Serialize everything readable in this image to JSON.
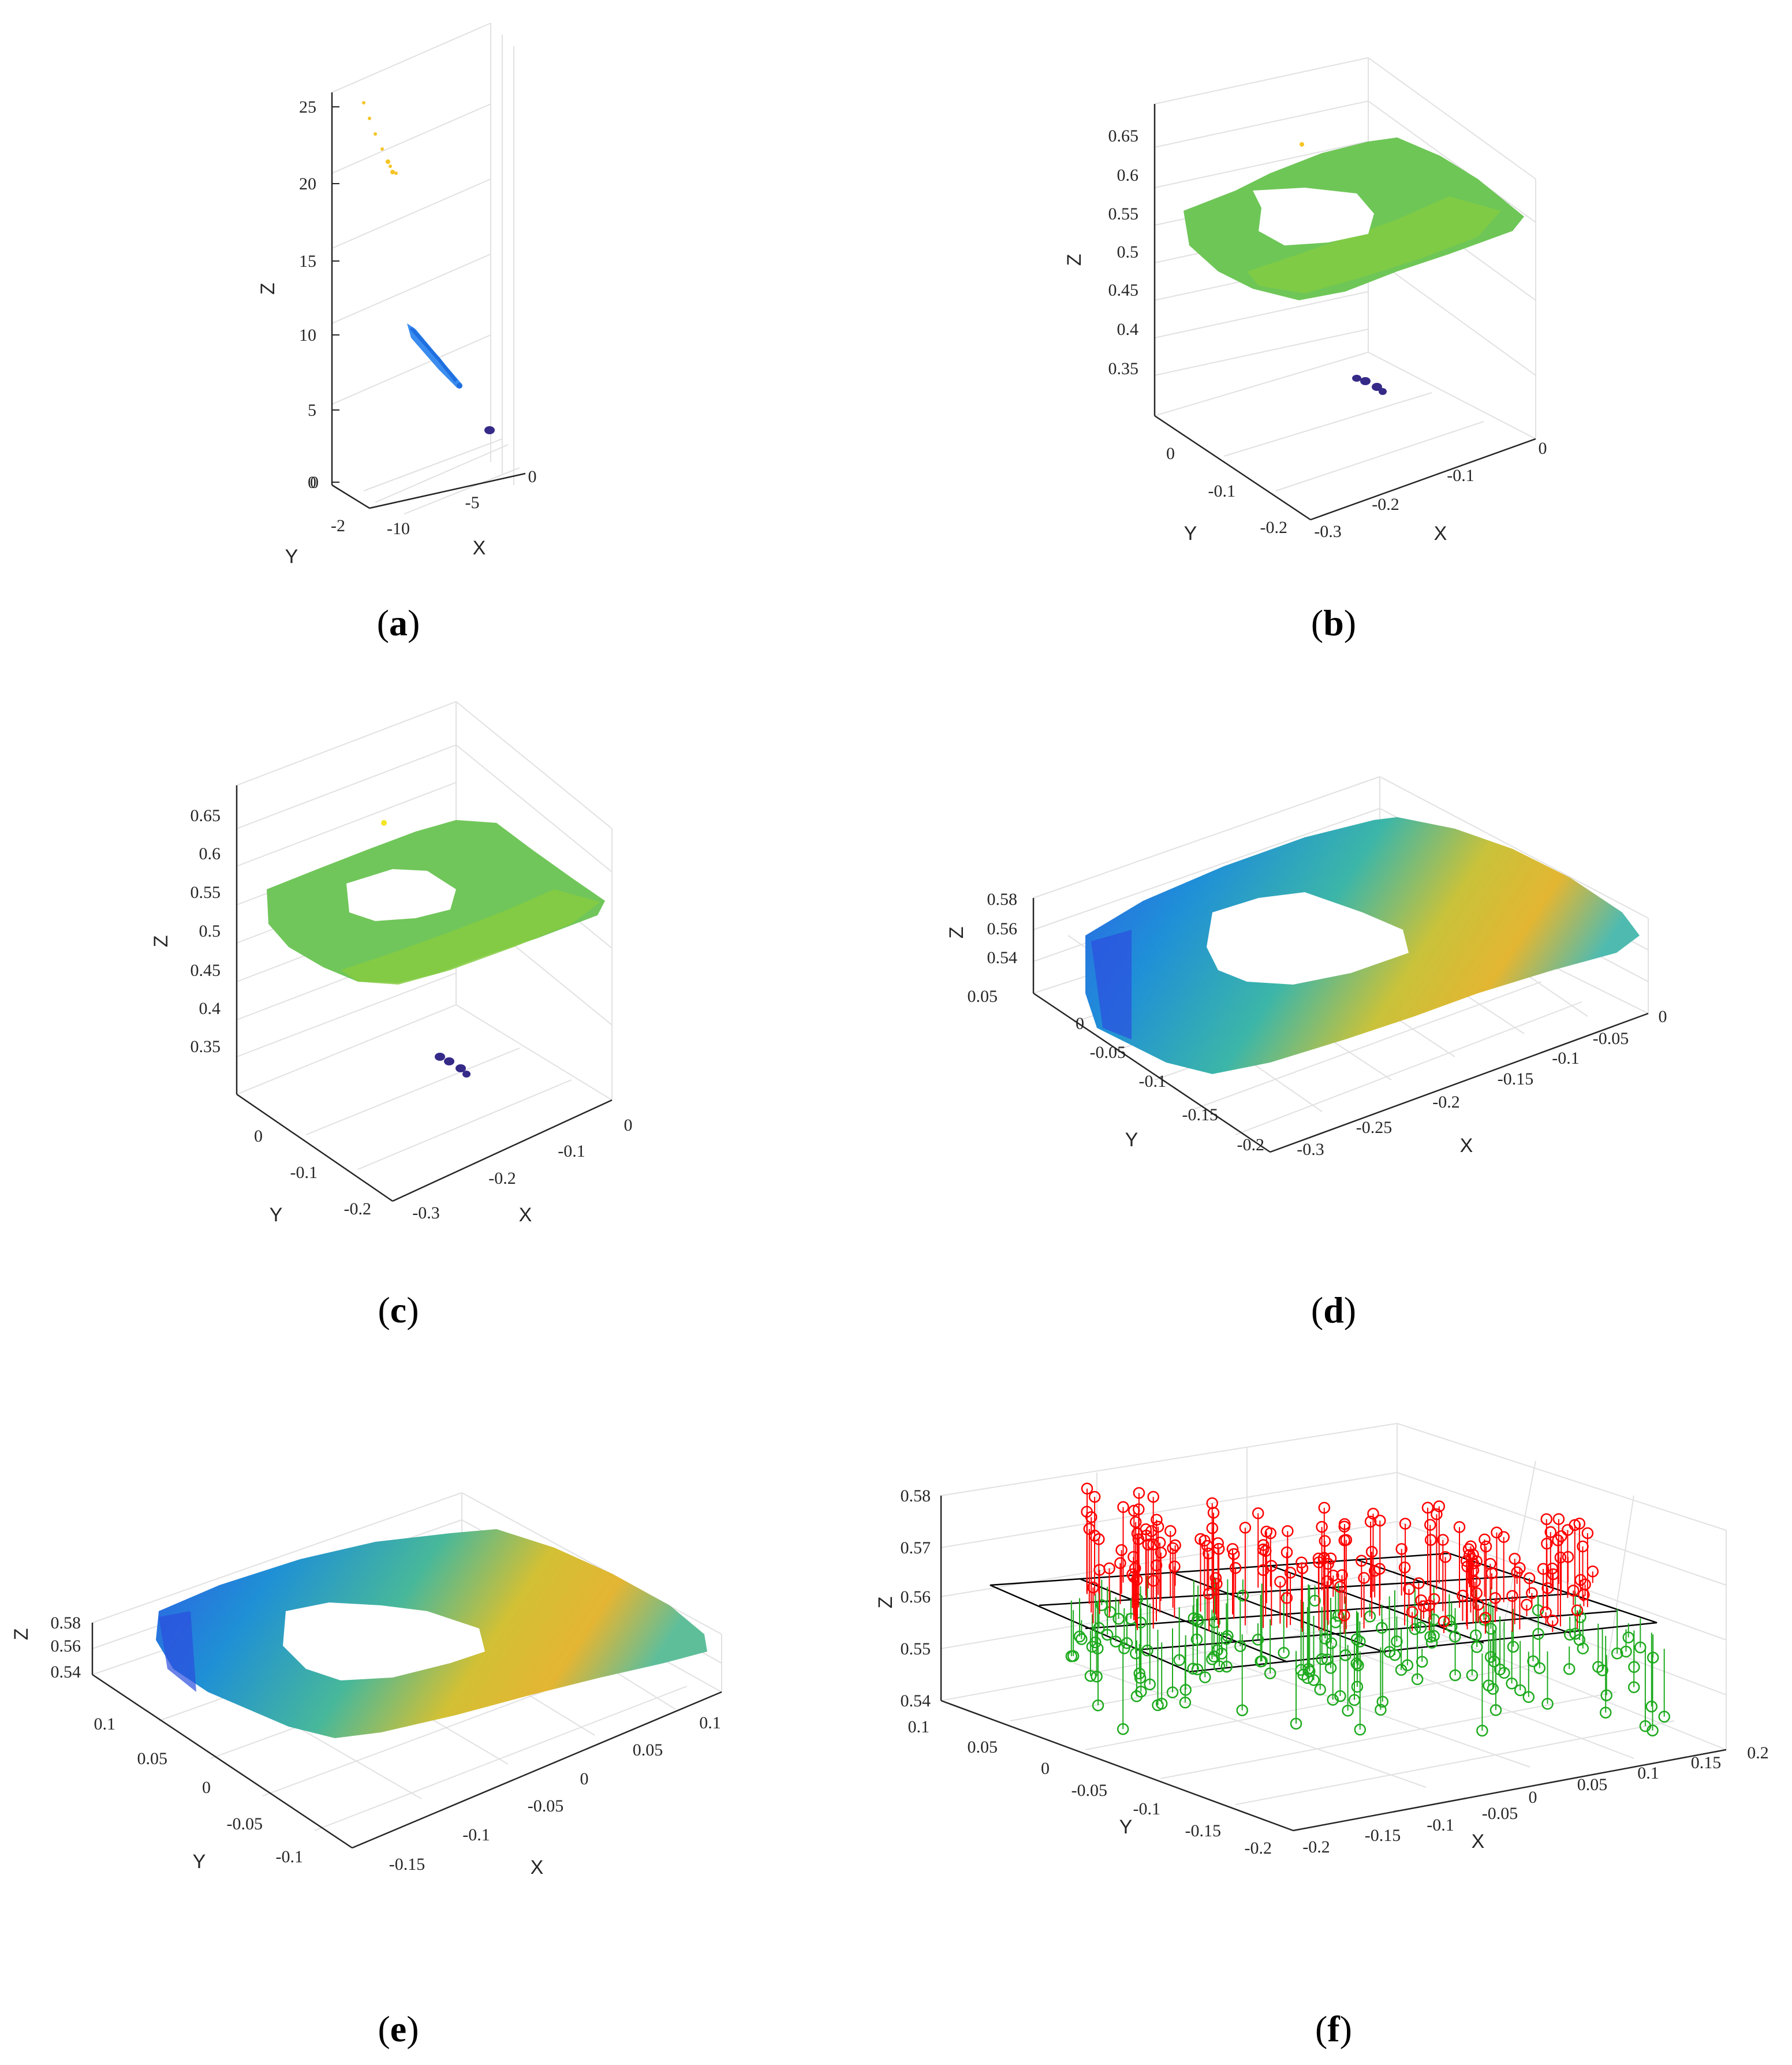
{
  "figure": {
    "panels": [
      {
        "caption": "a",
        "caption_parts": [
          "(",
          "a",
          ")"
        ]
      },
      {
        "caption": "b",
        "caption_parts": [
          "(",
          "b",
          ")"
        ]
      },
      {
        "caption": "c",
        "caption_parts": [
          "(",
          "c",
          ")"
        ]
      },
      {
        "caption": "d",
        "caption_parts": [
          "(",
          "d",
          ")"
        ]
      },
      {
        "caption": "e",
        "caption_parts": [
          "(",
          "e",
          ")"
        ]
      },
      {
        "caption": "f",
        "caption_parts": [
          "(",
          "f",
          ")"
        ]
      }
    ]
  },
  "colors": {
    "parula_dark_blue": "#352a87",
    "parula_blue": "#1f6fe0",
    "parula_cyan": "#22b3c9",
    "parula_green": "#7ac943",
    "parula_yellow": "#f5c528",
    "stem_red": "#ff0000",
    "stem_green": "#1eaa1e",
    "plane_black": "#000000"
  },
  "chart_data": [
    {
      "panel": "a",
      "type": "scatter",
      "subtype": "3d point cloud",
      "xlabel": "X",
      "ylabel": "Y",
      "zlabel": "Z",
      "x_ticks": [
        "-10",
        "-5",
        "0"
      ],
      "y_ticks": [
        "-2",
        "0"
      ],
      "z_ticks": [
        "0",
        "5",
        "10",
        "15",
        "20",
        "25"
      ],
      "xlim": [
        -12,
        0
      ],
      "ylim": [
        -2,
        0
      ],
      "zlim": [
        0,
        27
      ],
      "colormap": "parula",
      "clusters": [
        {
          "desc": "sparse far points",
          "x": [
            -11.5,
            -9.5
          ],
          "z": [
            21,
            26
          ],
          "color": "yellow"
        },
        {
          "desc": "elongated mid cluster",
          "x": [
            -8,
            -5
          ],
          "z": [
            6,
            10.5
          ],
          "color": "blue"
        },
        {
          "desc": "dense near cluster",
          "x": [
            -0.6,
            -0.2
          ],
          "z": [
            0.3,
            0.7
          ],
          "color": "dark blue"
        }
      ],
      "grid": true
    },
    {
      "panel": "b",
      "type": "scatter",
      "subtype": "3d point cloud",
      "xlabel": "X",
      "ylabel": "Y",
      "zlabel": "Z",
      "x_ticks": [
        "-0.3",
        "-0.2",
        "-0.1",
        "0"
      ],
      "y_ticks": [
        "-0.2",
        "-0.1",
        "0"
      ],
      "z_ticks": [
        "0.35",
        "0.4",
        "0.45",
        "0.5",
        "0.55",
        "0.6",
        "0.65"
      ],
      "xlim": [
        -0.3,
        0
      ],
      "ylim": [
        -0.2,
        0.05
      ],
      "zlim": [
        0.32,
        0.67
      ],
      "colormap": "parula",
      "clusters": [
        {
          "desc": "planar ring surface with central hole",
          "z": [
            0.52,
            0.58
          ],
          "color": "green"
        },
        {
          "desc": "small outlier blobs",
          "z": [
            0.34,
            0.36
          ],
          "color": "dark blue"
        }
      ],
      "grid": true
    },
    {
      "panel": "c",
      "type": "scatter",
      "subtype": "3d point cloud",
      "xlabel": "X",
      "ylabel": "Y",
      "zlabel": "Z",
      "x_ticks": [
        "-0.3",
        "-0.2",
        "-0.1",
        "0"
      ],
      "y_ticks": [
        "-0.2",
        "-0.1",
        "0"
      ],
      "z_ticks": [
        "0.35",
        "0.4",
        "0.45",
        "0.5",
        "0.55",
        "0.6",
        "0.65"
      ],
      "xlim": [
        -0.3,
        0
      ],
      "ylim": [
        -0.2,
        0.05
      ],
      "zlim": [
        0.32,
        0.67
      ],
      "colormap": "parula",
      "clusters": [
        {
          "desc": "planar ring surface with central hole",
          "z": [
            0.52,
            0.58
          ],
          "color": "green"
        },
        {
          "desc": "small outlier blobs",
          "z": [
            0.34,
            0.36
          ],
          "color": "dark blue"
        }
      ],
      "grid": true
    },
    {
      "panel": "d",
      "type": "scatter",
      "subtype": "3d point cloud",
      "xlabel": "X",
      "ylabel": "Y",
      "zlabel": "Z",
      "x_ticks": [
        "-0.3",
        "-0.25",
        "-0.2",
        "-0.15",
        "-0.1",
        "-0.05",
        "0"
      ],
      "y_ticks": [
        "-0.2",
        "-0.15",
        "-0.1",
        "-0.05",
        "0",
        "0.05"
      ],
      "z_ticks": [
        "0.54",
        "0.56",
        "0.58"
      ],
      "xlim": [
        -0.3,
        0
      ],
      "ylim": [
        -0.2,
        0.05
      ],
      "zlim": [
        0.54,
        0.58
      ],
      "colormap": "parula",
      "clusters": [
        {
          "desc": "ring surface, blue at left edge to yellow near hole",
          "z": [
            0.54,
            0.58
          ],
          "color": "blue-to-yellow"
        }
      ],
      "grid": true
    },
    {
      "panel": "e",
      "type": "scatter",
      "subtype": "3d point cloud",
      "xlabel": "X",
      "ylabel": "Y",
      "zlabel": "Z",
      "x_ticks": [
        "-0.15",
        "-0.1",
        "-0.05",
        "0",
        "0.05",
        "0.1"
      ],
      "y_ticks": [
        "-0.1",
        "-0.05",
        "0",
        "0.05",
        "0.1"
      ],
      "z_ticks": [
        "0.54",
        "0.56",
        "0.58"
      ],
      "xlim": [
        -0.17,
        0.12
      ],
      "ylim": [
        -0.12,
        0.12
      ],
      "zlim": [
        0.54,
        0.58
      ],
      "colormap": "parula",
      "clusters": [
        {
          "desc": "centered ring surface, blue at left edge to yellow near hole",
          "z": [
            0.54,
            0.58
          ],
          "color": "blue-to-yellow"
        }
      ],
      "grid": true
    },
    {
      "panel": "f",
      "type": "scatter",
      "subtype": "3d stem plot with fitted plane",
      "xlabel": "X",
      "ylabel": "Y",
      "zlabel": "Z",
      "x_ticks": [
        "-0.2",
        "-0.15",
        "-0.1",
        "-0.05",
        "0",
        "0.05",
        "0.1",
        "0.15",
        "0.2"
      ],
      "y_ticks": [
        "-0.2",
        "-0.15",
        "-0.1",
        "-0.05",
        "0",
        "0.05",
        "0.1"
      ],
      "z_ticks": [
        "0.54",
        "0.55",
        "0.56",
        "0.57",
        "0.58"
      ],
      "xlim": [
        -0.2,
        0.2
      ],
      "ylim": [
        -0.2,
        0.1
      ],
      "zlim": [
        0.54,
        0.58
      ],
      "series": [
        {
          "color": "red",
          "marker": "o",
          "desc": "points above plane",
          "z_range": [
            0.56,
            0.575
          ]
        },
        {
          "color": "green",
          "marker": "o",
          "desc": "points below plane",
          "z_range": [
            0.545,
            0.56
          ]
        }
      ],
      "plane_z": 0.56,
      "grid": true
    }
  ]
}
